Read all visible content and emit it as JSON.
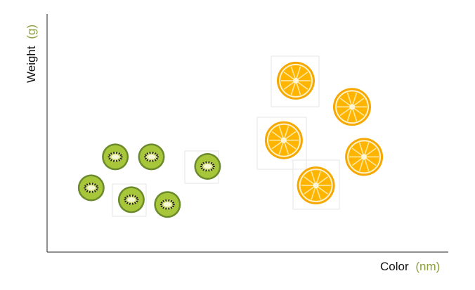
{
  "chart_data": {
    "type": "scatter",
    "xlabel": {
      "name": "Color",
      "unit": "(nm)"
    },
    "ylabel": {
      "name": "Weight",
      "unit": "(g)"
    },
    "grid": false,
    "series": [
      {
        "fruit": "kiwi",
        "marker": "kiwi slice",
        "points": [
          {
            "x": 0.17,
            "y": 0.4
          },
          {
            "x": 0.26,
            "y": 0.4
          },
          {
            "x": 0.11,
            "y": 0.27
          },
          {
            "x": 0.21,
            "y": 0.22
          },
          {
            "x": 0.3,
            "y": 0.2
          },
          {
            "x": 0.4,
            "y": 0.36
          }
        ]
      },
      {
        "fruit": "orange",
        "marker": "orange slice",
        "points": [
          {
            "x": 0.62,
            "y": 0.72
          },
          {
            "x": 0.76,
            "y": 0.61
          },
          {
            "x": 0.59,
            "y": 0.47
          },
          {
            "x": 0.79,
            "y": 0.4
          },
          {
            "x": 0.67,
            "y": 0.28
          }
        ]
      }
    ],
    "colors": {
      "axis": "#222222",
      "unit": "#8ca040",
      "kiwi_skin": "#6a8a2c",
      "kiwi_flesh": "#a8c63a",
      "kiwi_core": "#f4f6d6",
      "kiwi_seed": "#222222",
      "orange_rind": "#f6a800",
      "orange_pith": "#fff2c8",
      "orange_flesh": "#ffb400",
      "orange_segment": "#ffe7a0",
      "orange_core": "#fff6d8"
    }
  }
}
